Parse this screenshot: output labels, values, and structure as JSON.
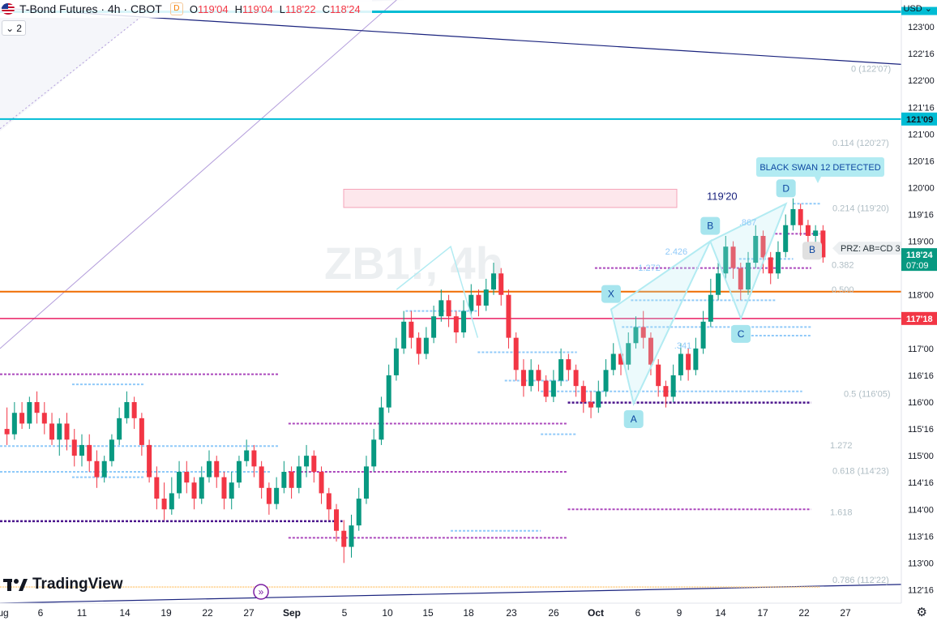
{
  "header": {
    "symbol": "T-Bond Futures · 4h · CBOT",
    "badge": "D",
    "open_label": "O",
    "open": "119'04",
    "high_label": "H",
    "high": "119'04",
    "low_label": "L",
    "low": "118'22",
    "close_label": "C",
    "close": "118'24",
    "indicators_count": "2",
    "currency": "USD"
  },
  "branding": {
    "logo_text": "TradingView"
  },
  "colors": {
    "up": "#089981",
    "down": "#f23645",
    "cyan": "#00bcd4",
    "orange": "#ef6c00",
    "pink": "#e91e63",
    "navy": "#1a237e",
    "blue_dash": "#90caf9",
    "purple_dash": "#ab47bc",
    "pattern": "#b2ebf2",
    "fib": "#b0bec5"
  },
  "chart_data": {
    "type": "candlestick",
    "price_scale": {
      "ticks": [
        "123'00",
        "122'16",
        "122'00",
        "121'16",
        "121'00",
        "120'16",
        "120'00",
        "119'16",
        "119'00",
        "118'00",
        "117'00",
        "116'16",
        "116'00",
        "115'16",
        "115'00",
        "114'16",
        "114'00",
        "113'16",
        "113'00",
        "112'16"
      ],
      "ylim": [
        112.25,
        123.5
      ]
    },
    "time_axis": {
      "ticks": [
        "ug",
        "6",
        "11",
        "14",
        "19",
        "22",
        "27",
        "Sep",
        "5",
        "10",
        "15",
        "18",
        "23",
        "26",
        "Oct",
        "6",
        "9",
        "14",
        "17",
        "22",
        "27"
      ]
    },
    "price_tags": [
      {
        "label": "121'09",
        "value": 121.28,
        "color": "#00bcd4",
        "text_color": "#131722"
      },
      {
        "label": "118'24",
        "value": 118.75,
        "color": "#089981",
        "text_color": "#ffffff",
        "sub": "07:09"
      },
      {
        "label": "117'18",
        "value": 117.56,
        "color": "#f23645",
        "text_color": "#ffffff"
      }
    ],
    "horizontal_lines": [
      {
        "value": 123.28,
        "color": "#00bcd4",
        "width": 3
      },
      {
        "value": 121.28,
        "color": "#00bcd4",
        "width": 2
      },
      {
        "value": 118.06,
        "color": "#ef6c00",
        "width": 2
      },
      {
        "value": 117.56,
        "color": "#e91e63",
        "width": 1.5
      }
    ],
    "fib_labels": [
      {
        "label": "0 (122'07)",
        "value": 122.22
      },
      {
        "label": "0.114 (120'27)",
        "value": 120.84
      },
      {
        "label": "0.214 (119'20)",
        "value": 119.62
      },
      {
        "label": "0.382",
        "value": 118.56
      },
      {
        "label": "0.500",
        "value": 118.1
      },
      {
        "label": "0.786 (112'22)",
        "value": 112.69
      },
      {
        "label": "0.618 (114'23)",
        "value": 114.72
      },
      {
        "label": "0.5 (116'05)",
        "value": 116.16
      },
      {
        "label": "1.272",
        "value": 115.2
      },
      {
        "label": "1.618",
        "value": 113.95
      }
    ],
    "pattern_points": [
      {
        "label": "X",
        "t": 0.678,
        "value": 117.73
      },
      {
        "label": "A",
        "t": 0.703,
        "value": 115.97
      },
      {
        "label": "B",
        "t": 0.788,
        "value": 119.0
      },
      {
        "label": "C",
        "t": 0.822,
        "value": 117.56
      },
      {
        "label": "D",
        "t": 0.872,
        "value": 119.7
      }
    ],
    "pattern_ratios": [
      "2.426",
      "1.272",
      ".341",
      ".867"
    ],
    "annotations": {
      "black_swan": "BLACK SWAN 12 DETECTED",
      "prz": "PRZ: AB=CD 3",
      "price_label": "119'20",
      "pattern_tag": "B",
      "watermark": "ZB1!, 4h"
    },
    "candles": [
      [
        115.5,
        115.4,
        115.9,
        115.2
      ],
      [
        115.4,
        115.8,
        116.0,
        115.3
      ],
      [
        115.8,
        115.6,
        116.0,
        115.5
      ],
      [
        115.6,
        116.0,
        116.1,
        115.5
      ],
      [
        116.0,
        115.8,
        116.2,
        115.6
      ],
      [
        115.8,
        115.6,
        116.0,
        115.4
      ],
      [
        115.6,
        115.3,
        115.8,
        115.2
      ],
      [
        115.3,
        115.6,
        115.7,
        115.0
      ],
      [
        115.6,
        115.3,
        115.8,
        115.1
      ],
      [
        115.3,
        115.0,
        115.5,
        114.8
      ],
      [
        115.0,
        115.2,
        115.4,
        114.8
      ],
      [
        115.2,
        114.9,
        115.4,
        114.7
      ],
      [
        114.9,
        114.6,
        115.1,
        114.4
      ],
      [
        114.6,
        114.9,
        115.0,
        114.5
      ],
      [
        114.9,
        115.3,
        115.4,
        114.8
      ],
      [
        115.3,
        115.7,
        115.9,
        115.2
      ],
      [
        115.7,
        116.0,
        116.2,
        115.6
      ],
      [
        116.0,
        115.7,
        116.1,
        115.5
      ],
      [
        115.7,
        115.2,
        115.8,
        115.0
      ],
      [
        115.2,
        114.6,
        115.3,
        114.5
      ],
      [
        114.6,
        114.2,
        114.8,
        114.0
      ],
      [
        114.2,
        114.0,
        114.5,
        113.8
      ],
      [
        114.0,
        114.3,
        114.6,
        113.9
      ],
      [
        114.3,
        114.7,
        114.9,
        114.2
      ],
      [
        114.7,
        114.5,
        114.9,
        114.3
      ],
      [
        114.5,
        114.2,
        114.6,
        114.0
      ],
      [
        114.2,
        114.6,
        114.8,
        114.1
      ],
      [
        114.6,
        114.9,
        115.1,
        114.5
      ],
      [
        114.9,
        114.6,
        115.0,
        114.4
      ],
      [
        114.6,
        114.2,
        114.7,
        114.0
      ],
      [
        114.2,
        114.5,
        114.7,
        114.0
      ],
      [
        114.5,
        114.9,
        115.0,
        114.4
      ],
      [
        114.9,
        115.1,
        115.3,
        114.8
      ],
      [
        115.1,
        114.8,
        115.2,
        114.6
      ],
      [
        114.8,
        114.4,
        114.9,
        114.2
      ],
      [
        114.4,
        114.1,
        114.5,
        113.9
      ],
      [
        114.1,
        114.4,
        114.6,
        114.0
      ],
      [
        114.4,
        114.7,
        114.9,
        114.3
      ],
      [
        114.7,
        114.4,
        114.8,
        114.2
      ],
      [
        114.4,
        114.8,
        115.0,
        114.3
      ],
      [
        114.8,
        115.0,
        115.2,
        114.6
      ],
      [
        115.0,
        114.7,
        115.1,
        114.5
      ],
      [
        114.7,
        114.3,
        114.8,
        114.1
      ],
      [
        114.3,
        114.0,
        114.4,
        113.8
      ],
      [
        114.0,
        113.6,
        114.1,
        113.4
      ],
      [
        113.6,
        113.3,
        113.8,
        113.0
      ],
      [
        113.3,
        113.7,
        113.9,
        113.1
      ],
      [
        113.7,
        114.2,
        114.4,
        113.6
      ],
      [
        114.2,
        114.8,
        115.0,
        114.1
      ],
      [
        114.8,
        115.3,
        115.5,
        114.7
      ],
      [
        115.3,
        115.9,
        116.1,
        115.2
      ],
      [
        115.9,
        116.5,
        116.7,
        115.8
      ],
      [
        116.5,
        117.0,
        117.2,
        116.4
      ],
      [
        117.0,
        117.5,
        117.7,
        116.9
      ],
      [
        117.5,
        117.2,
        117.7,
        117.0
      ],
      [
        117.2,
        116.9,
        117.3,
        116.7
      ],
      [
        116.9,
        117.2,
        117.4,
        116.8
      ],
      [
        117.2,
        117.6,
        117.8,
        117.1
      ],
      [
        117.6,
        117.9,
        118.1,
        117.5
      ],
      [
        117.9,
        117.6,
        118.0,
        117.4
      ],
      [
        117.6,
        117.3,
        117.7,
        117.1
      ],
      [
        117.3,
        117.7,
        117.9,
        117.2
      ],
      [
        117.7,
        118.0,
        118.2,
        117.6
      ],
      [
        118.0,
        117.8,
        118.1,
        117.6
      ],
      [
        117.8,
        118.1,
        118.3,
        117.7
      ],
      [
        118.1,
        118.4,
        118.6,
        118.0
      ],
      [
        118.4,
        118.0,
        118.5,
        117.8
      ],
      [
        118.0,
        117.2,
        118.1,
        117.0
      ],
      [
        117.2,
        116.6,
        117.3,
        116.4
      ],
      [
        116.6,
        116.3,
        116.8,
        116.1
      ],
      [
        116.3,
        116.6,
        116.8,
        116.2
      ],
      [
        116.6,
        116.4,
        116.7,
        116.2
      ],
      [
        116.4,
        116.1,
        116.5,
        116.0
      ],
      [
        116.1,
        116.4,
        116.6,
        116.0
      ],
      [
        116.4,
        116.8,
        117.0,
        116.3
      ],
      [
        116.8,
        116.6,
        116.9,
        116.4
      ],
      [
        116.6,
        116.3,
        116.7,
        116.1
      ],
      [
        116.3,
        116.0,
        116.4,
        115.8
      ],
      [
        116.0,
        115.9,
        116.2,
        115.7
      ],
      [
        115.9,
        116.2,
        116.4,
        115.8
      ],
      [
        116.2,
        116.6,
        116.8,
        116.1
      ],
      [
        116.6,
        116.9,
        117.1,
        116.5
      ],
      [
        116.9,
        116.7,
        117.0,
        116.5
      ],
      [
        116.7,
        117.1,
        117.3,
        116.6
      ],
      [
        117.1,
        117.4,
        117.6,
        117.0
      ],
      [
        117.4,
        117.2,
        117.7,
        117.0
      ],
      [
        117.2,
        116.7,
        117.3,
        116.5
      ],
      [
        116.7,
        116.3,
        116.8,
        116.1
      ],
      [
        116.3,
        116.1,
        116.4,
        115.9
      ],
      [
        116.1,
        116.5,
        116.7,
        116.0
      ],
      [
        116.5,
        116.9,
        117.1,
        116.4
      ],
      [
        116.9,
        116.6,
        117.0,
        116.4
      ],
      [
        116.6,
        117.0,
        117.2,
        116.5
      ],
      [
        117.0,
        117.5,
        117.7,
        116.9
      ],
      [
        117.5,
        118.0,
        118.3,
        117.4
      ],
      [
        118.0,
        118.4,
        118.6,
        117.9
      ],
      [
        118.4,
        118.9,
        119.1,
        118.3
      ],
      [
        118.9,
        118.5,
        119.0,
        118.3
      ],
      [
        118.5,
        118.1,
        118.6,
        117.9
      ],
      [
        118.1,
        118.6,
        118.8,
        118.0
      ],
      [
        118.6,
        119.1,
        119.3,
        118.5
      ],
      [
        119.1,
        118.7,
        119.2,
        118.4
      ],
      [
        118.7,
        118.4,
        118.8,
        118.2
      ],
      [
        118.4,
        118.8,
        119.0,
        118.3
      ],
      [
        118.8,
        119.3,
        119.5,
        118.7
      ],
      [
        119.3,
        119.6,
        119.8,
        119.2
      ],
      [
        119.6,
        119.3,
        119.7,
        119.1
      ],
      [
        119.3,
        119.1,
        119.4,
        118.9
      ],
      [
        119.1,
        119.2,
        119.3,
        118.9
      ],
      [
        119.2,
        118.7,
        119.3,
        118.6
      ]
    ]
  }
}
